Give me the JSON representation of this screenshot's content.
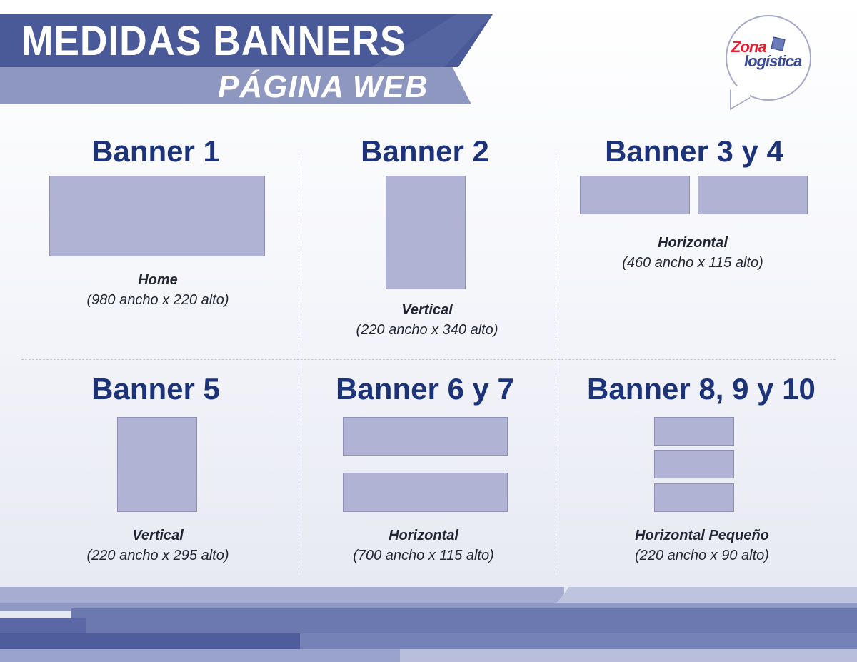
{
  "header": {
    "title": "MEDIDAS BANNERS",
    "subtitle": "PÁGINA WEB"
  },
  "logo": {
    "line1": "Zona",
    "line2": "logística"
  },
  "colors": {
    "heading": "#1d3379",
    "banner_box": "#b1b3d5",
    "header_dark": "#4a5a98",
    "header_light": "#8d97bf",
    "logo_red": "#e02232"
  },
  "banners": [
    {
      "heading": "Banner 1",
      "label": "Home",
      "dims": "(980 ancho x 220 alto)"
    },
    {
      "heading": "Banner 2",
      "label": "Vertical",
      "dims": "(220 ancho x 340 alto)"
    },
    {
      "heading": "Banner 3 y 4",
      "label": "Horizontal",
      "dims": "(460 ancho x 115 alto)"
    },
    {
      "heading": "Banner 5",
      "label": "Vertical",
      "dims": "(220 ancho x 295 alto)"
    },
    {
      "heading": "Banner 6  y 7",
      "label": "Horizontal",
      "dims": "(700 ancho x 115 alto)"
    },
    {
      "heading": "Banner 8, 9 y 10",
      "label": "Horizontal  Pequeño",
      "dims": "(220 ancho x 90 alto)"
    }
  ]
}
